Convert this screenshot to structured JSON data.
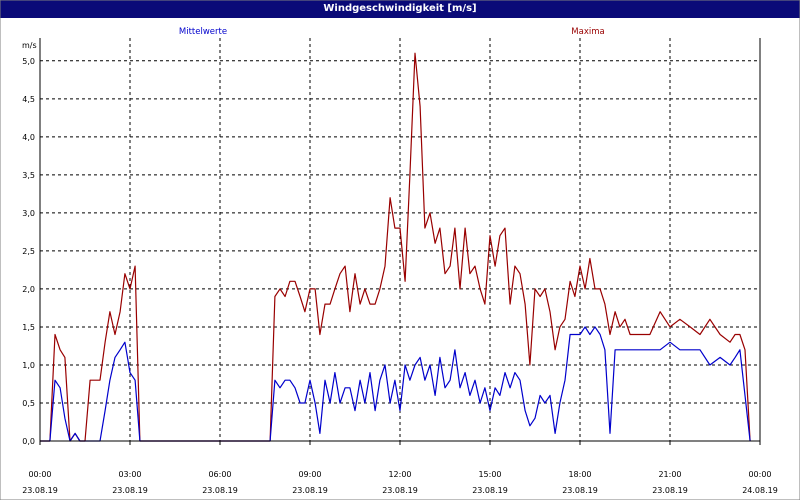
{
  "window": {
    "title": "Windgeschwindigkeit [m/s]"
  },
  "colors": {
    "title_bar": "#0a0a78",
    "mean_series": "#0000cc",
    "max_series": "#990000",
    "grid": "#000000"
  },
  "chart_data": {
    "type": "line",
    "title": "Windgeschwindigkeit [m/s]",
    "ylabel": "m/s",
    "xlabel": "",
    "ylim": [
      0,
      5.3
    ],
    "xlim_hours": [
      0,
      24
    ],
    "grid": true,
    "legend_placement": "top",
    "y_ticks": [
      "0,0",
      "0,5",
      "1,0",
      "1,5",
      "2,0",
      "2,5",
      "3,0",
      "3,5",
      "4,0",
      "4,5",
      "5,0"
    ],
    "x_ticks": [
      {
        "time": "00:00",
        "date": "23.08.19"
      },
      {
        "time": "03:00",
        "date": "23.08.19"
      },
      {
        "time": "06:00",
        "date": "23.08.19"
      },
      {
        "time": "09:00",
        "date": "23.08.19"
      },
      {
        "time": "12:00",
        "date": "23.08.19"
      },
      {
        "time": "15:00",
        "date": "23.08.19"
      },
      {
        "time": "18:00",
        "date": "23.08.19"
      },
      {
        "time": "21:00",
        "date": "23.08.19"
      },
      {
        "time": "00:00",
        "date": "24.08.19"
      }
    ],
    "series": [
      {
        "name": "Mittelwerte",
        "color": "#0000cc",
        "x_hours": [
          0.0,
          0.33,
          0.5,
          0.67,
          0.83,
          1.0,
          1.17,
          1.33,
          1.5,
          1.67,
          1.83,
          2.0,
          2.17,
          2.33,
          2.5,
          2.67,
          2.83,
          3.0,
          3.17,
          3.33,
          3.5,
          3.6,
          3.67,
          4.0,
          6.0,
          7.67,
          7.83,
          8.0,
          8.17,
          8.33,
          8.5,
          8.67,
          8.83,
          9.0,
          9.17,
          9.33,
          9.5,
          9.67,
          9.83,
          10.0,
          10.17,
          10.33,
          10.5,
          10.67,
          10.83,
          11.0,
          11.17,
          11.33,
          11.5,
          11.67,
          11.83,
          12.0,
          12.17,
          12.33,
          12.5,
          12.67,
          12.83,
          13.0,
          13.17,
          13.33,
          13.5,
          13.67,
          13.83,
          14.0,
          14.17,
          14.33,
          14.5,
          14.67,
          14.83,
          15.0,
          15.17,
          15.33,
          15.5,
          15.67,
          15.83,
          16.0,
          16.17,
          16.33,
          16.5,
          16.67,
          16.83,
          17.0,
          17.17,
          17.33,
          17.5,
          17.67,
          17.83,
          18.0,
          18.17,
          18.33,
          18.5,
          18.67,
          18.83,
          19.0,
          19.17,
          19.33,
          19.5,
          19.67,
          19.83,
          20.0,
          20.33,
          20.67,
          21.0,
          21.33,
          21.67,
          22.0,
          22.33,
          22.67,
          23.0,
          23.17,
          23.33,
          23.5,
          23.67
        ],
        "values": [
          0.0,
          0.0,
          0.8,
          0.7,
          0.3,
          0.0,
          0.1,
          0.0,
          0.0,
          0.0,
          0.0,
          0.0,
          0.4,
          0.8,
          1.1,
          1.2,
          1.3,
          0.9,
          0.8,
          0.0,
          0.0,
          0.0,
          0.0,
          0.0,
          0.0,
          0.0,
          0.8,
          0.7,
          0.8,
          0.8,
          0.7,
          0.5,
          0.5,
          0.8,
          0.5,
          0.1,
          0.8,
          0.5,
          0.9,
          0.5,
          0.7,
          0.7,
          0.4,
          0.8,
          0.5,
          0.9,
          0.4,
          0.8,
          1.0,
          0.5,
          0.8,
          0.4,
          1.0,
          0.8,
          1.0,
          1.1,
          0.8,
          1.0,
          0.6,
          1.1,
          0.7,
          0.8,
          1.2,
          0.7,
          0.9,
          0.6,
          0.8,
          0.5,
          0.7,
          0.4,
          0.7,
          0.6,
          0.9,
          0.7,
          0.9,
          0.8,
          0.4,
          0.2,
          0.3,
          0.6,
          0.5,
          0.6,
          0.1,
          0.5,
          0.8,
          1.4,
          1.4,
          1.4,
          1.5,
          1.4,
          1.5,
          1.4,
          1.2,
          0.1,
          1.2,
          1.2,
          1.2,
          1.2,
          1.2,
          1.2,
          1.2,
          1.2,
          1.3,
          1.2,
          1.2,
          1.2,
          1.0,
          1.1,
          1.0,
          1.1,
          1.2,
          0.6,
          0.0
        ]
      },
      {
        "name": "Maxima",
        "color": "#990000",
        "x_hours": [
          0.0,
          0.33,
          0.5,
          0.67,
          0.83,
          1.0,
          1.17,
          1.33,
          1.5,
          1.67,
          1.83,
          2.0,
          2.17,
          2.33,
          2.5,
          2.67,
          2.83,
          3.0,
          3.17,
          3.33,
          3.5,
          3.6,
          3.67,
          4.0,
          6.0,
          7.67,
          7.83,
          8.0,
          8.17,
          8.33,
          8.5,
          8.67,
          8.83,
          9.0,
          9.17,
          9.33,
          9.5,
          9.67,
          9.83,
          10.0,
          10.17,
          10.33,
          10.5,
          10.67,
          10.83,
          11.0,
          11.17,
          11.33,
          11.5,
          11.67,
          11.83,
          12.0,
          12.17,
          12.33,
          12.5,
          12.67,
          12.83,
          13.0,
          13.17,
          13.33,
          13.5,
          13.67,
          13.83,
          14.0,
          14.17,
          14.33,
          14.5,
          14.67,
          14.83,
          15.0,
          15.17,
          15.33,
          15.5,
          15.67,
          15.83,
          16.0,
          16.17,
          16.33,
          16.5,
          16.67,
          16.83,
          17.0,
          17.17,
          17.33,
          17.5,
          17.67,
          17.83,
          18.0,
          18.17,
          18.33,
          18.5,
          18.67,
          18.83,
          19.0,
          19.17,
          19.33,
          19.5,
          19.67,
          19.83,
          20.0,
          20.33,
          20.67,
          21.0,
          21.33,
          21.67,
          22.0,
          22.33,
          22.67,
          23.0,
          23.17,
          23.33,
          23.5,
          23.67
        ],
        "values": [
          0.0,
          0.0,
          1.4,
          1.2,
          1.1,
          0.0,
          0.1,
          0.0,
          0.0,
          0.8,
          0.8,
          0.8,
          1.3,
          1.7,
          1.4,
          1.7,
          2.2,
          2.0,
          2.3,
          0.0,
          0.0,
          0.0,
          0.0,
          0.0,
          0.0,
          0.0,
          1.9,
          2.0,
          1.9,
          2.1,
          2.1,
          1.9,
          1.7,
          2.0,
          2.0,
          1.4,
          1.8,
          1.8,
          2.0,
          2.2,
          2.3,
          1.7,
          2.2,
          1.8,
          2.0,
          1.8,
          1.8,
          2.0,
          2.3,
          3.2,
          2.8,
          2.8,
          2.1,
          3.5,
          5.1,
          4.4,
          2.8,
          3.0,
          2.6,
          2.8,
          2.2,
          2.3,
          2.8,
          2.0,
          2.8,
          2.2,
          2.3,
          2.0,
          1.8,
          2.7,
          2.3,
          2.7,
          2.8,
          1.8,
          2.3,
          2.2,
          1.8,
          1.0,
          2.0,
          1.9,
          2.0,
          1.7,
          1.2,
          1.5,
          1.6,
          2.1,
          1.9,
          2.3,
          2.0,
          2.4,
          2.0,
          2.0,
          1.8,
          1.4,
          1.7,
          1.5,
          1.6,
          1.4,
          1.4,
          1.4,
          1.4,
          1.7,
          1.5,
          1.6,
          1.5,
          1.4,
          1.6,
          1.4,
          1.3,
          1.4,
          1.4,
          1.2,
          0.0
        ]
      }
    ]
  }
}
